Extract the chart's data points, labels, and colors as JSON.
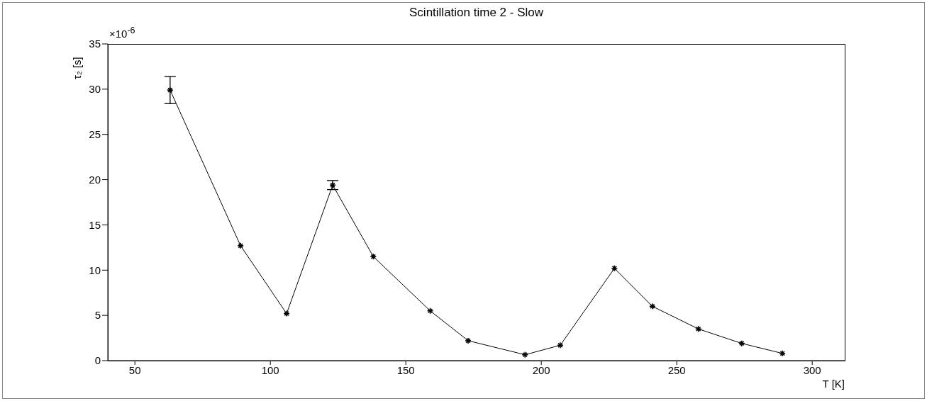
{
  "chart_data": {
    "type": "line",
    "title": "Scintillation time 2 - Slow",
    "xlabel": "T [K]",
    "ylabel": "τ₂ [s]",
    "annotations": [
      "×10$^{-6}$"
    ],
    "x": [
      63,
      89,
      106,
      123,
      138,
      159,
      173,
      194,
      207,
      227,
      241,
      258,
      274,
      289
    ],
    "series": [
      {
        "color": "#000000",
        "values": [
          29.9,
          12.7,
          5.2,
          19.4,
          11.5,
          5.5,
          2.2,
          0.65,
          1.7,
          10.2,
          6.0,
          3.5,
          1.9,
          0.8
        ],
        "errors": [
          1.5,
          null,
          null,
          0.5,
          null,
          null,
          null,
          null,
          null,
          null,
          null,
          null,
          null,
          null
        ]
      }
    ],
    "xlim": [
      40,
      312
    ],
    "xticks": [
      50,
      100,
      150,
      200,
      250,
      300
    ],
    "ylim": [
      0,
      35
    ],
    "yticks": [
      0,
      5,
      10,
      15,
      20,
      25,
      30,
      35
    ],
    "grid": false,
    "marker": "cross",
    "line_style": "solid"
  }
}
